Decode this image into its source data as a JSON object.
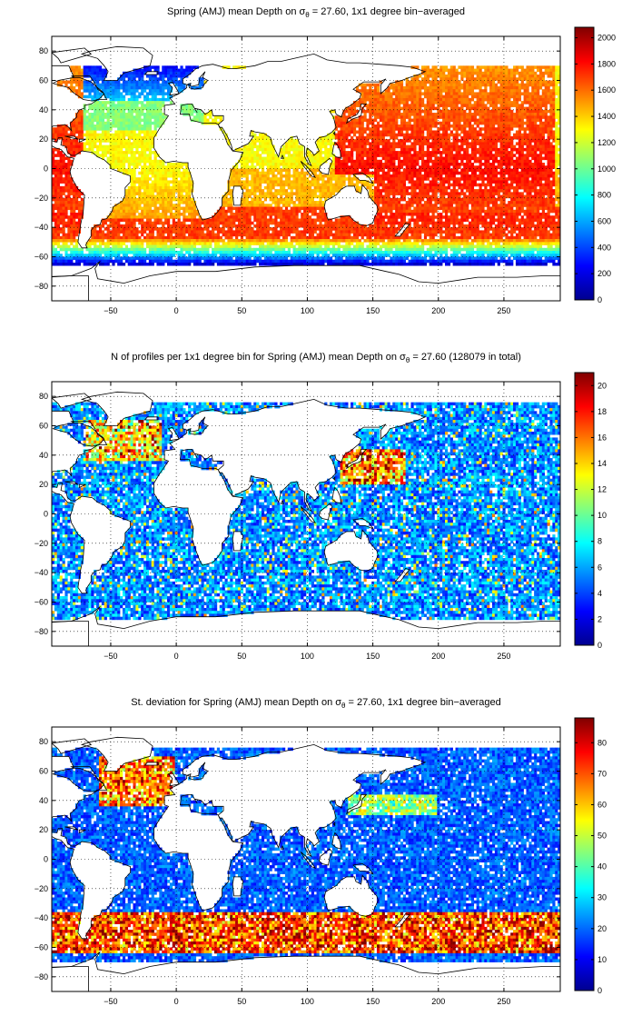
{
  "colors": {
    "colormap": [
      "#00008f",
      "#0000ff",
      "#0080ff",
      "#00ffff",
      "#80ff80",
      "#ffff00",
      "#ff8000",
      "#ff0000",
      "#800000"
    ],
    "land": "#ffffff",
    "coast": "#000000",
    "grid": "#000000"
  },
  "panels": [
    {
      "title_pre": "Spring (AMJ) mean Depth on σ",
      "title_sub": "θ",
      "title_post": " = 27.60, 1x1 degree bin−averaged",
      "variable": "mean_depth",
      "colorbar": {
        "ticks": [
          0,
          200,
          400,
          600,
          800,
          1000,
          1200,
          1400,
          1600,
          1800,
          2000
        ],
        "range": [
          0,
          2080
        ]
      }
    },
    {
      "title_pre": "N of profiles per 1x1 degree bin for Spring (AMJ) mean Depth on σ",
      "title_sub": "θ",
      "title_post": " = 27.60 (128079 in total)",
      "variable": "profile_count",
      "colorbar": {
        "ticks": [
          0,
          2,
          4,
          6,
          8,
          10,
          12,
          14,
          16,
          18,
          20
        ],
        "range": [
          0,
          21
        ]
      }
    },
    {
      "title_pre": "St. deviation for Spring (AMJ) mean Depth on σ",
      "title_sub": "θ",
      "title_post": " = 27.60, 1x1 degree bin−averaged",
      "variable": "std_depth",
      "colorbar": {
        "ticks": [
          0,
          10,
          20,
          30,
          40,
          50,
          60,
          70,
          80
        ],
        "range": [
          0,
          88
        ]
      }
    }
  ],
  "axes": {
    "xlim": [
      -95,
      293
    ],
    "ylim": [
      -90,
      90
    ],
    "xticks": [
      -50,
      0,
      50,
      100,
      150,
      200,
      250
    ],
    "yticks": [
      -80,
      -60,
      -40,
      -20,
      0,
      20,
      40,
      60,
      80
    ],
    "grid": "dotted"
  }
}
